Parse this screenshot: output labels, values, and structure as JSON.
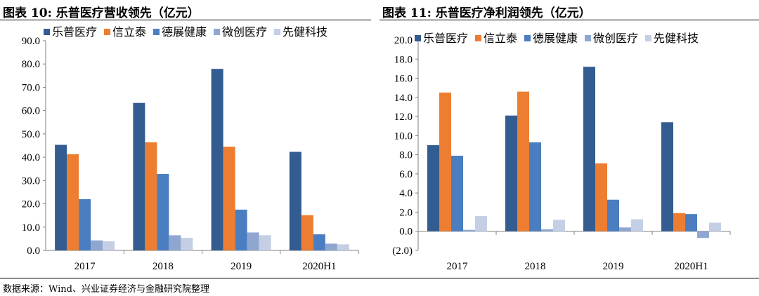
{
  "titles": [
    "图表 10:   乐普医疗营收领先（亿元）",
    "图表 11:   乐普医疗净利润领先（亿元）"
  ],
  "source": "数据来源：Wind、兴业证券经济与金融研究院整理",
  "chart_data": [
    {
      "type": "bar",
      "title": "乐普医疗营收领先（亿元）",
      "categories": [
        "2017",
        "2018",
        "2019",
        "2020H1"
      ],
      "ylim": [
        0,
        90
      ],
      "ytick_step": 10,
      "ytick_labels": [
        "0.0",
        "10.0",
        "20.0",
        "30.0",
        "40.0",
        "50.0",
        "60.0",
        "70.0",
        "80.0",
        "90.0"
      ],
      "legend": "top",
      "grid": false,
      "series": [
        {
          "name": "乐普医疗",
          "color": "#335C91",
          "values": [
            45.3,
            63.3,
            77.9,
            42.3
          ]
        },
        {
          "name": "信立泰",
          "color": "#ED7D31",
          "values": [
            41.3,
            46.4,
            44.5,
            15.1
          ]
        },
        {
          "name": "德展健康",
          "color": "#4A7EC1",
          "values": [
            22.0,
            32.8,
            17.5,
            6.9
          ]
        },
        {
          "name": "微创医疗",
          "color": "#8FA7D0",
          "values": [
            4.3,
            6.5,
            7.7,
            2.9
          ]
        },
        {
          "name": "先健科技",
          "color": "#C4CFE5",
          "values": [
            3.9,
            5.4,
            6.5,
            2.6
          ]
        }
      ]
    },
    {
      "type": "bar",
      "title": "乐普医疗净利润领先（亿元）",
      "categories": [
        "2017",
        "2018",
        "2019",
        "2020H1"
      ],
      "ylim": [
        -2,
        20
      ],
      "ytick_step": 2,
      "ytick_labels": [
        "(2.0)",
        "0.0",
        "2.0",
        "4.0",
        "6.0",
        "8.0",
        "10.0",
        "12.0",
        "14.0",
        "16.0",
        "18.0",
        "20.0"
      ],
      "legend": "top",
      "grid": false,
      "series": [
        {
          "name": "乐普医疗",
          "color": "#335C91",
          "values": [
            9.0,
            12.1,
            17.2,
            11.4
          ]
        },
        {
          "name": "信立泰",
          "color": "#ED7D31",
          "values": [
            14.5,
            14.6,
            7.1,
            1.9
          ]
        },
        {
          "name": "德展健康",
          "color": "#4A7EC1",
          "values": [
            7.9,
            9.3,
            3.3,
            1.8
          ]
        },
        {
          "name": "微创医疗",
          "color": "#8FA7D0",
          "values": [
            0.15,
            0.2,
            0.4,
            -0.7
          ]
        },
        {
          "name": "先健科技",
          "color": "#C4CFE5",
          "values": [
            1.6,
            1.2,
            1.25,
            0.9
          ]
        }
      ]
    }
  ]
}
